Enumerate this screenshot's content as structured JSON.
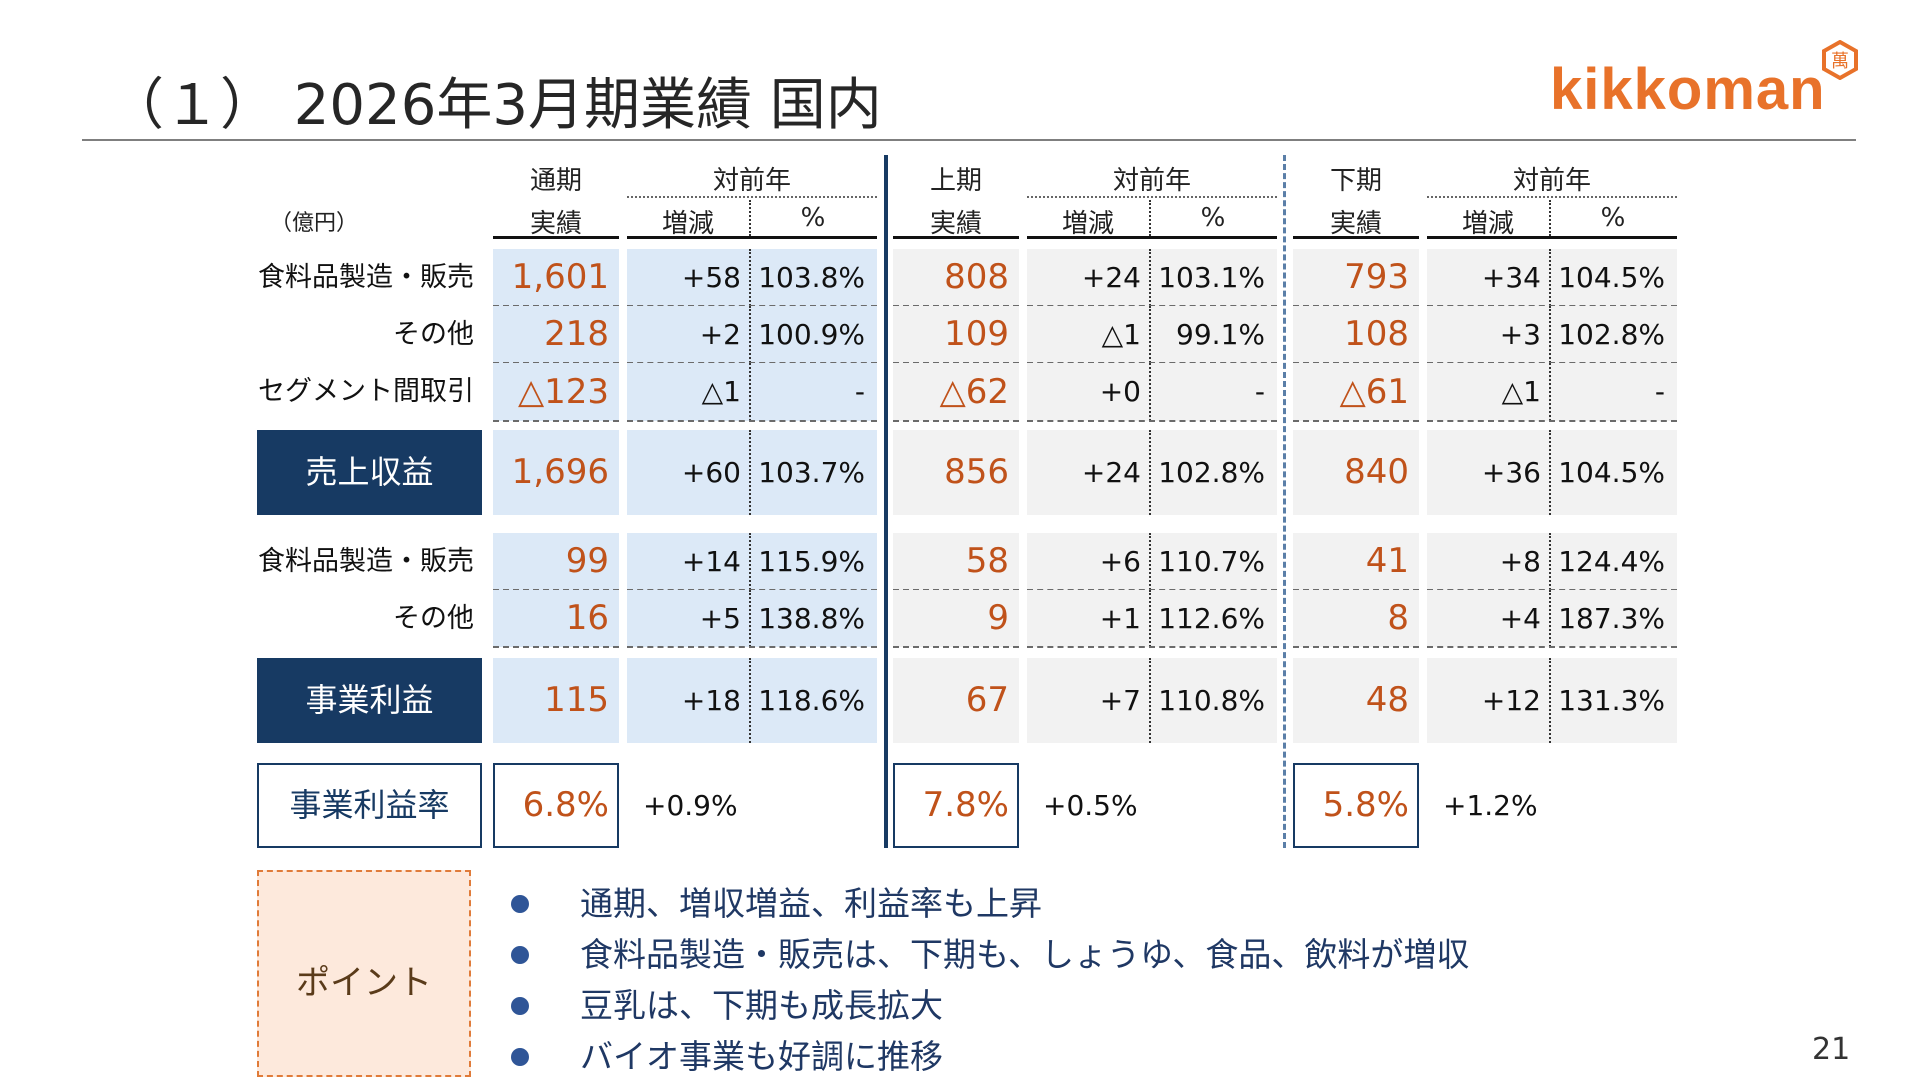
{
  "title": "（１） 2026年3月期業績 国内",
  "logo": {
    "text": "kikkoman",
    "seal_char": "萬"
  },
  "page_number": "21",
  "header": {
    "unit": "（億円）",
    "groups": [
      {
        "period": "通期",
        "actual": "実績",
        "yoy": "対前年",
        "diff": "増減",
        "pct": "%"
      },
      {
        "period": "上期",
        "actual": "実績",
        "yoy": "対前年",
        "diff": "増減",
        "pct": "%"
      },
      {
        "period": "下期",
        "actual": "実績",
        "yoy": "対前年",
        "diff": "増減",
        "pct": "%"
      }
    ]
  },
  "rows": {
    "food_sales": {
      "label": "食料品製造・販売",
      "g": [
        {
          "v": "1,601",
          "d": "+58",
          "p": "103.8%"
        },
        {
          "v": "808",
          "d": "+24",
          "p": "103.1%"
        },
        {
          "v": "793",
          "d": "+34",
          "p": "104.5%"
        }
      ]
    },
    "other_sales": {
      "label": "その他",
      "g": [
        {
          "v": "218",
          "d": "+2",
          "p": "100.9%"
        },
        {
          "v": "109",
          "d": "△1",
          "p": "99.1%"
        },
        {
          "v": "108",
          "d": "+3",
          "p": "102.8%"
        }
      ]
    },
    "segment_elim": {
      "label": "セグメント間取引",
      "g": [
        {
          "v": "△123",
          "d": "△1",
          "p": "-"
        },
        {
          "v": "△62",
          "d": "+0",
          "p": "-"
        },
        {
          "v": "△61",
          "d": "△1",
          "p": "-"
        }
      ]
    },
    "revenue": {
      "label": "売上収益",
      "g": [
        {
          "v": "1,696",
          "d": "+60",
          "p": "103.7%"
        },
        {
          "v": "856",
          "d": "+24",
          "p": "102.8%"
        },
        {
          "v": "840",
          "d": "+36",
          "p": "104.5%"
        }
      ]
    },
    "food_profit": {
      "label": "食料品製造・販売",
      "g": [
        {
          "v": "99",
          "d": "+14",
          "p": "115.9%"
        },
        {
          "v": "58",
          "d": "+6",
          "p": "110.7%"
        },
        {
          "v": "41",
          "d": "+8",
          "p": "124.4%"
        }
      ]
    },
    "other_profit": {
      "label": "その他",
      "g": [
        {
          "v": "16",
          "d": "+5",
          "p": "138.8%"
        },
        {
          "v": "9",
          "d": "+1",
          "p": "112.6%"
        },
        {
          "v": "8",
          "d": "+4",
          "p": "187.3%"
        }
      ]
    },
    "biz_profit": {
      "label": "事業利益",
      "g": [
        {
          "v": "115",
          "d": "+18",
          "p": "118.6%"
        },
        {
          "v": "67",
          "d": "+7",
          "p": "110.8%"
        },
        {
          "v": "48",
          "d": "+12",
          "p": "131.3%"
        }
      ]
    },
    "margin": {
      "label": "事業利益率",
      "g": [
        {
          "v": "6.8%",
          "d": "+0.9%"
        },
        {
          "v": "7.8%",
          "d": "+0.5%"
        },
        {
          "v": "5.8%",
          "d": "+1.2%"
        }
      ]
    }
  },
  "points": {
    "label": "ポイント",
    "items": [
      "通期、増収増益、利益率も上昇",
      "食料品製造・販売は、下期も、しょうゆ、食品、飲料が増収",
      "豆乳は、下期も成長拡大",
      "バイオ事業も好調に推移"
    ]
  },
  "colors": {
    "navy": "#173a63",
    "accent_orange": "#c0521a",
    "logo_orange": "#e8722a",
    "cell_blue": "#dce9f7",
    "cell_gray": "#f2f2f2",
    "point_bg": "#fde9dc"
  }
}
